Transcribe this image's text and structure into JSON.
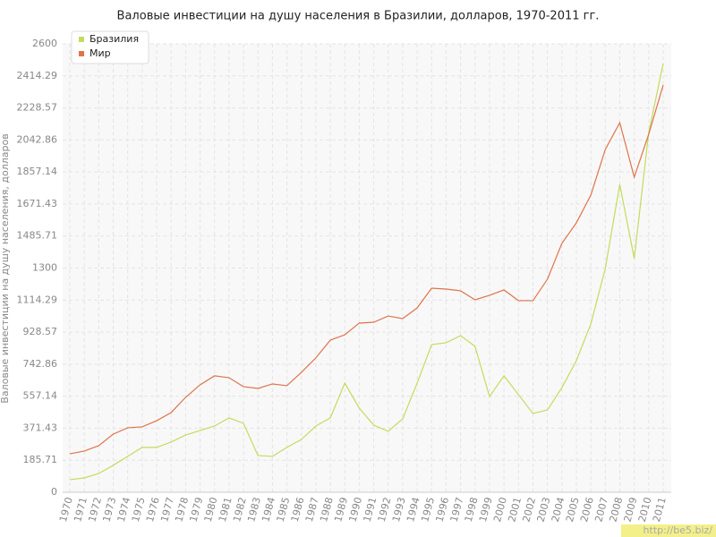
{
  "chart_data": {
    "type": "line",
    "title": "Валовые инвестиции на душу населения в Бразилии, долларов, 1970-2011 гг.",
    "y_label": "Валовые инвестиции на душу населения, долларов",
    "watermark": "http://be5.biz/",
    "categories": [
      "1970",
      "1971",
      "1972",
      "1973",
      "1974",
      "1975",
      "1976",
      "1977",
      "1978",
      "1979",
      "1980",
      "1981",
      "1982",
      "1983",
      "1984",
      "1985",
      "1986",
      "1987",
      "1988",
      "1989",
      "1990",
      "1991",
      "1992",
      "1993",
      "1994",
      "1995",
      "1996",
      "1997",
      "1998",
      "1999",
      "2000",
      "2001",
      "2002",
      "2003",
      "2004",
      "2005",
      "2006",
      "2007",
      "2008",
      "2009",
      "2010",
      "2011"
    ],
    "series": [
      {
        "name": "Бразилия",
        "color": "#c2dc5c",
        "values": [
          73,
          83,
          109,
          156,
          208,
          260,
          260,
          291,
          332,
          358,
          384,
          431,
          400,
          213,
          208,
          260,
          306,
          384,
          431,
          633,
          488,
          389,
          353,
          426,
          633,
          856,
          867,
          908,
          846,
          555,
          675,
          566,
          457,
          477,
          607,
          763,
          976,
          1298,
          1785,
          1355,
          2086,
          2486
        ]
      },
      {
        "name": "Мир",
        "color": "#e0734a",
        "values": [
          223,
          239,
          270,
          337,
          374,
          379,
          415,
          462,
          550,
          623,
          675,
          664,
          612,
          602,
          628,
          618,
          695,
          779,
          882,
          913,
          981,
          986,
          1022,
          1007,
          1069,
          1183,
          1178,
          1168,
          1116,
          1142,
          1173,
          1111,
          1111,
          1235,
          1443,
          1562,
          1723,
          1988,
          2143,
          1827,
          2076,
          2361
        ]
      }
    ],
    "ylim": [
      0,
      2600
    ],
    "yticks": [
      0,
      185.71,
      371.43,
      557.14,
      742.86,
      928.57,
      1114.29,
      1300,
      1485.71,
      1671.43,
      1857.14,
      2042.86,
      2228.57,
      2414.29,
      2600
    ],
    "grid": true,
    "legend": "top-left"
  }
}
